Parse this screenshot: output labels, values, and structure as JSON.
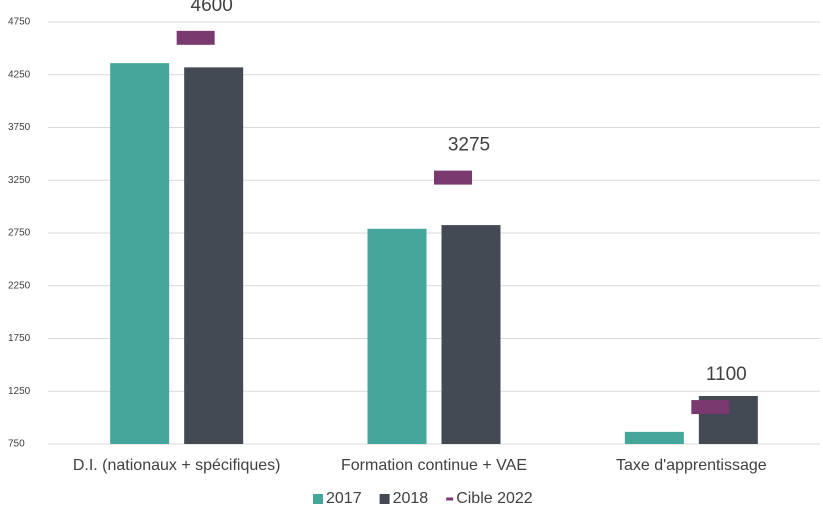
{
  "chart_data": {
    "type": "bar",
    "categories": [
      "D.I. (nationaux + spécifiques)",
      "Formation continue + VAE",
      "Taxe d'apprentissage"
    ],
    "series": [
      {
        "name": "2017",
        "color": "#44a69a",
        "values": [
          4360,
          2790,
          865
        ]
      },
      {
        "name": "2018",
        "color": "#434a54",
        "values": [
          4320,
          2825,
          1205
        ]
      },
      {
        "name": "Cible 2022",
        "color": "#7b3a6f",
        "values": [
          4600,
          3275,
          1100
        ],
        "marker": "target"
      }
    ],
    "ylim": [
      750,
      4750
    ],
    "yticks": [
      750,
      1250,
      1750,
      2250,
      2750,
      3250,
      3750,
      4250,
      4750
    ],
    "grid": true,
    "legend": "bottom"
  }
}
